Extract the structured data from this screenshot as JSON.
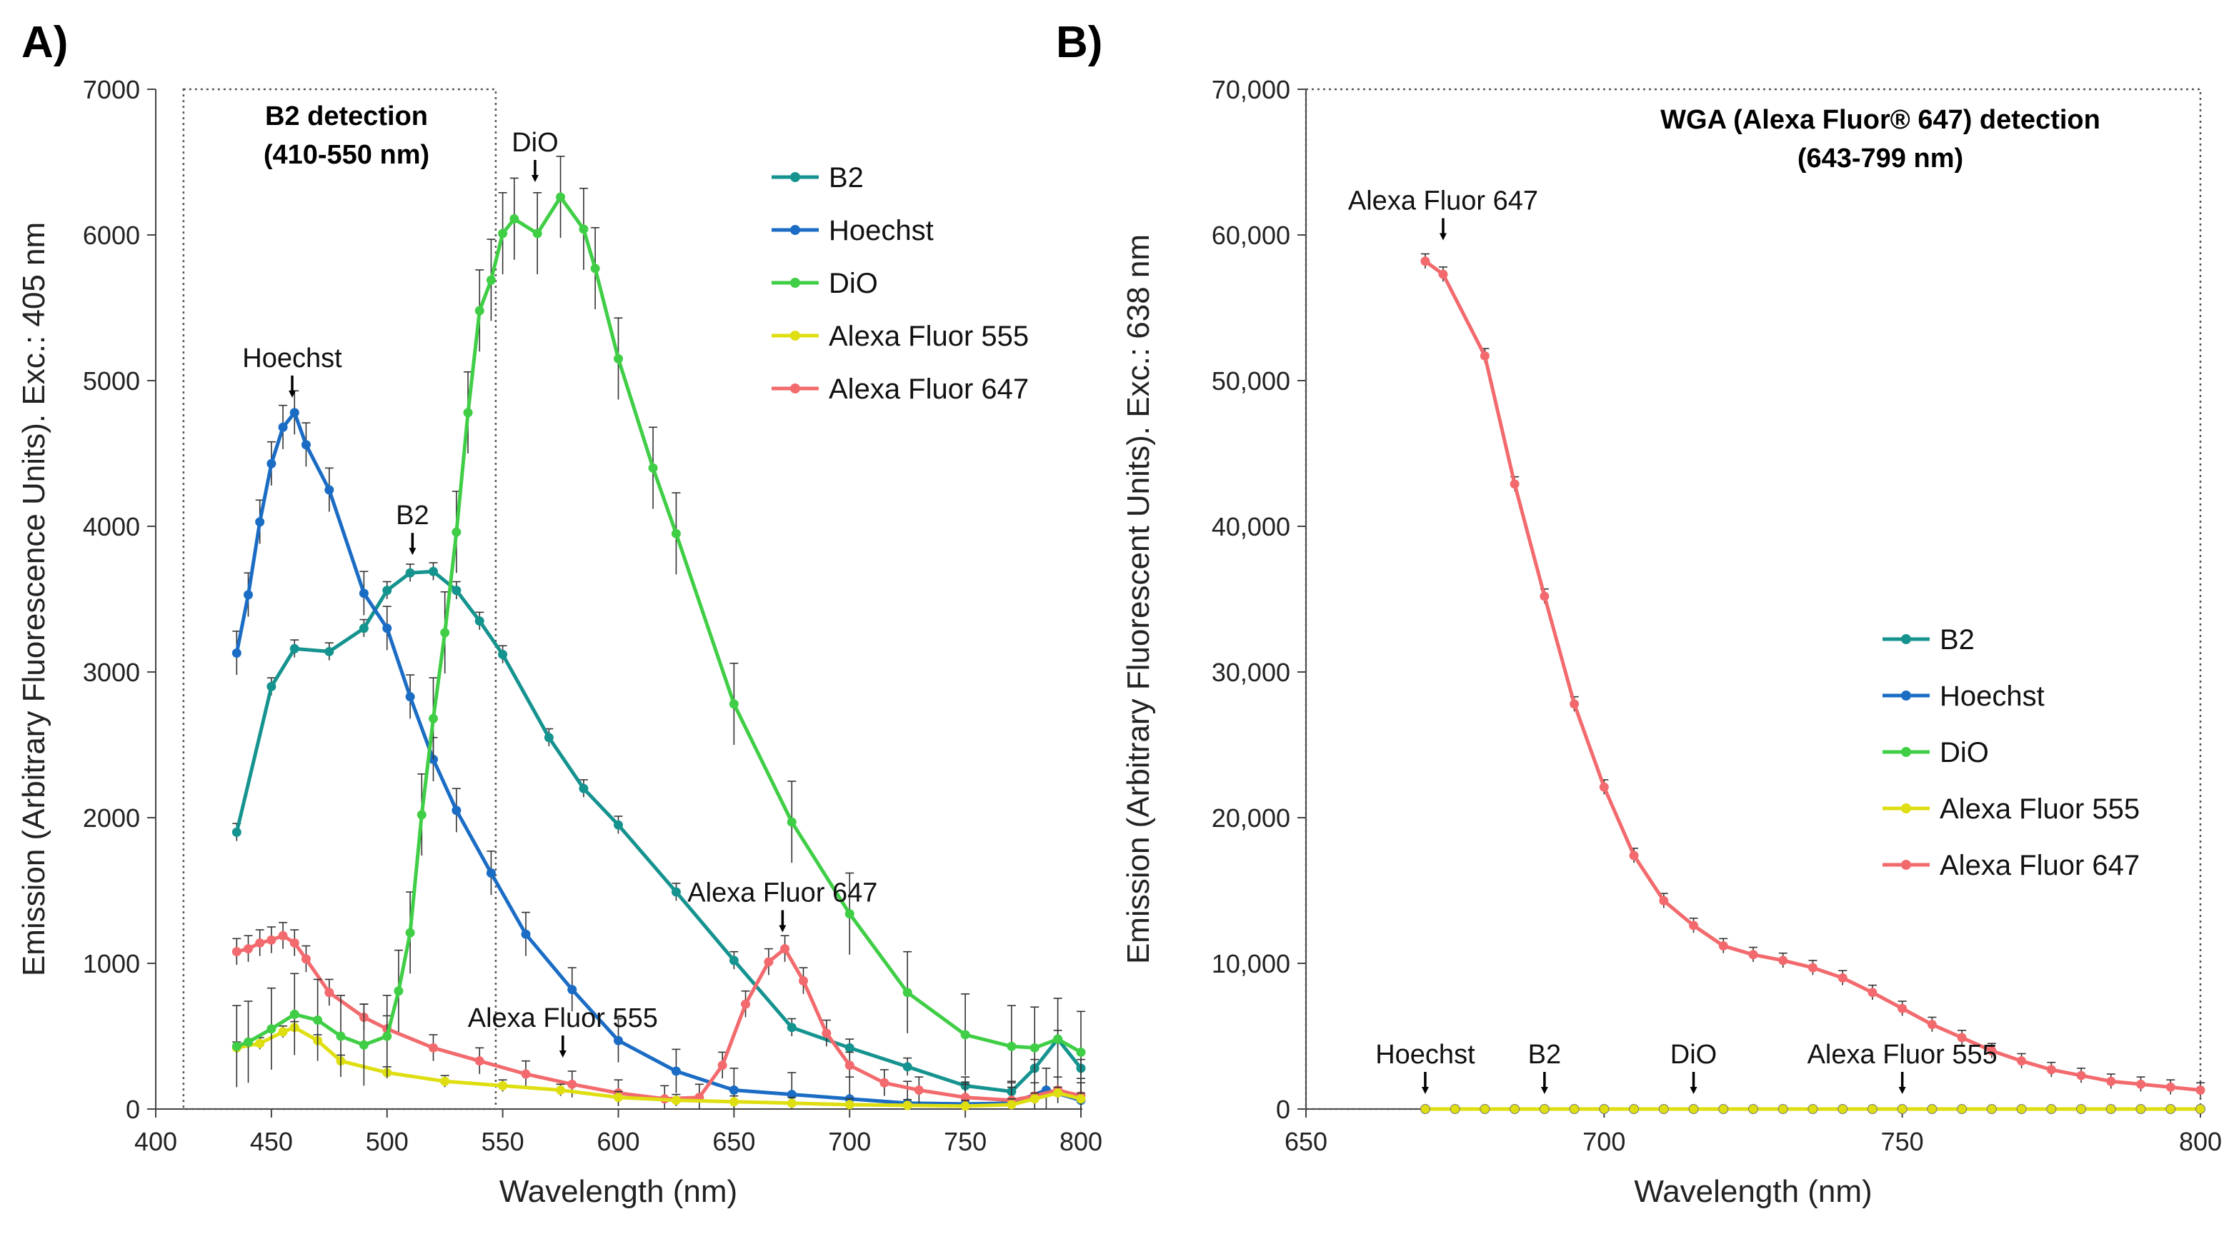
{
  "panels": {
    "a": "A)",
    "b": "B)"
  },
  "colors": {
    "B2": "#15938f",
    "Hoechst": "#1a6cc4",
    "DiO": "#3fce45",
    "Alexa Fluor 555": "#dede10",
    "Alexa Fluor 647": "#f26a6d"
  },
  "chart_data": [
    {
      "type": "line",
      "title": "",
      "xlabel": "Wavelength (nm)",
      "ylabel": "Emission (Arbitrary Fluorescence Units). Exc.: 405 nm",
      "xlim": [
        400,
        800
      ],
      "ylim": [
        0,
        7000
      ],
      "xticks": [
        "400",
        "450",
        "500",
        "550",
        "600",
        "650",
        "700",
        "750",
        "800"
      ],
      "yticks": [
        "0",
        "1000",
        "2000",
        "3000",
        "4000",
        "5000",
        "6000",
        "7000"
      ],
      "detection_box": {
        "range": [
          412,
          547
        ],
        "title": "B2 detection",
        "subtitle": "(410-550 nm)"
      },
      "legend": [
        "B2",
        "Hoechst",
        "DiO",
        "Alexa Fluor 555",
        "Alexa Fluor 647"
      ],
      "annotations": [
        {
          "text": "Hoechst",
          "x": 459,
          "y": 4780
        },
        {
          "text": "B2",
          "x": 511,
          "y": 3700
        },
        {
          "text": "DiO",
          "x": 564,
          "y": 6260
        },
        {
          "text": "Alexa Fluor 647",
          "x": 671,
          "y": 1110
        },
        {
          "text": "Alexa Fluor 555",
          "x": 576,
          "y": 250
        }
      ],
      "series": [
        {
          "name": "B2",
          "error": 60,
          "x": [
            435,
            450,
            460,
            475,
            490,
            500,
            510,
            520,
            530,
            540,
            550,
            570,
            585,
            600,
            625,
            650,
            675,
            700,
            725,
            750,
            770,
            780,
            790,
            800
          ],
          "y": [
            1900,
            2900,
            3160,
            3140,
            3300,
            3560,
            3680,
            3690,
            3560,
            3350,
            3120,
            2550,
            2200,
            1950,
            1490,
            1020,
            560,
            420,
            290,
            160,
            120,
            280,
            480,
            280
          ]
        },
        {
          "name": "Hoechst",
          "error": 150,
          "x": [
            435,
            440,
            445,
            450,
            455,
            460,
            465,
            475,
            490,
            500,
            510,
            520,
            530,
            545,
            560,
            580,
            600,
            625,
            650,
            675,
            700,
            725,
            750,
            770,
            785,
            800
          ],
          "y": [
            3130,
            3530,
            4030,
            4430,
            4680,
            4780,
            4560,
            4250,
            3540,
            3300,
            2830,
            2400,
            2050,
            1620,
            1200,
            820,
            470,
            260,
            130,
            100,
            70,
            40,
            35,
            40,
            130,
            60
          ]
        },
        {
          "name": "DiO",
          "error": 280,
          "x": [
            435,
            440,
            450,
            460,
            470,
            480,
            490,
            500,
            505,
            510,
            515,
            520,
            525,
            530,
            535,
            540,
            545,
            550,
            555,
            565,
            575,
            585,
            590,
            600,
            615,
            625,
            650,
            675,
            700,
            725,
            750,
            770,
            780,
            790,
            800
          ],
          "y": [
            430,
            460,
            550,
            650,
            610,
            500,
            440,
            500,
            810,
            1210,
            2020,
            2680,
            3270,
            3960,
            4780,
            5480,
            5690,
            6010,
            6110,
            6010,
            6260,
            6040,
            5770,
            5150,
            4400,
            3950,
            2780,
            1970,
            1340,
            800,
            510,
            430,
            420,
            480,
            390
          ]
        },
        {
          "name": "Alexa Fluor 555",
          "error": 40,
          "x": [
            435,
            445,
            455,
            460,
            470,
            480,
            500,
            525,
            550,
            575,
            600,
            625,
            650,
            675,
            700,
            725,
            750,
            770,
            780,
            790,
            800
          ],
          "y": [
            420,
            450,
            530,
            560,
            470,
            330,
            250,
            190,
            160,
            130,
            80,
            60,
            50,
            40,
            30,
            25,
            20,
            30,
            70,
            110,
            70
          ]
        },
        {
          "name": "Alexa Fluor 647",
          "error": 90,
          "x": [
            435,
            440,
            445,
            450,
            455,
            460,
            465,
            475,
            490,
            500,
            520,
            540,
            560,
            580,
            600,
            620,
            635,
            645,
            655,
            665,
            672,
            680,
            690,
            700,
            715,
            730,
            750,
            770,
            780,
            790,
            800
          ],
          "y": [
            1080,
            1100,
            1140,
            1160,
            1190,
            1140,
            1030,
            800,
            630,
            550,
            420,
            330,
            240,
            170,
            110,
            70,
            80,
            300,
            720,
            1010,
            1100,
            880,
            520,
            300,
            180,
            130,
            80,
            60,
            90,
            130,
            90
          ]
        }
      ]
    },
    {
      "type": "line",
      "title": "",
      "xlabel": "Wavelength (nm)",
      "ylabel": "Emission (Arbitrary Fluorescent Units). Exc.: 638 nm",
      "xlim": [
        650,
        800
      ],
      "ylim": [
        0,
        70000
      ],
      "xticks": [
        "650",
        "700",
        "750",
        "800"
      ],
      "yticks": [
        "0",
        "10,000",
        "20,000",
        "30,000",
        "40,000",
        "50,000",
        "60,000",
        "70,000"
      ],
      "detection_box": {
        "range": [
          650,
          800
        ],
        "title": "WGA (Alexa Fluor® 647) detection",
        "subtitle": "(643-799 nm)"
      },
      "legend": [
        "B2",
        "Hoechst",
        "DiO",
        "Alexa Fluor 555",
        "Alexa Fluor 647"
      ],
      "annotations": [
        {
          "text": "Alexa Fluor 647",
          "x": 673,
          "y": 58600
        },
        {
          "text": "Hoechst",
          "x": 670,
          "y": 0
        },
        {
          "text": "B2",
          "x": 690,
          "y": 0
        },
        {
          "text": "DiO",
          "x": 715,
          "y": 0
        },
        {
          "text": "Alexa Fluor 555",
          "x": 750,
          "y": 0
        }
      ],
      "series": [
        {
          "name": "B2",
          "x": [
            670,
            675,
            680,
            685,
            690,
            695,
            700,
            705,
            710,
            715,
            720,
            725,
            730,
            735,
            740,
            745,
            750,
            755,
            760,
            765,
            770,
            775,
            780,
            785,
            790,
            795,
            800
          ],
          "y": [
            0,
            0,
            0,
            0,
            0,
            0,
            0,
            0,
            0,
            0,
            0,
            0,
            0,
            0,
            0,
            0,
            0,
            0,
            0,
            0,
            0,
            0,
            0,
            0,
            0,
            0,
            0
          ]
        },
        {
          "name": "Hoechst",
          "x": [
            670,
            675,
            680,
            685,
            690,
            695,
            700,
            705,
            710,
            715,
            720,
            725,
            730,
            735,
            740,
            745,
            750,
            755,
            760,
            765,
            770,
            775,
            780,
            785,
            790,
            795,
            800
          ],
          "y": [
            0,
            0,
            0,
            0,
            0,
            0,
            0,
            0,
            0,
            0,
            0,
            0,
            0,
            0,
            0,
            0,
            0,
            0,
            0,
            0,
            0,
            0,
            0,
            0,
            0,
            0,
            0
          ]
        },
        {
          "name": "DiO",
          "x": [
            670,
            675,
            680,
            685,
            690,
            695,
            700,
            705,
            710,
            715,
            720,
            725,
            730,
            735,
            740,
            745,
            750,
            755,
            760,
            765,
            770,
            775,
            780,
            785,
            790,
            795,
            800
          ],
          "y": [
            0,
            0,
            0,
            0,
            0,
            0,
            0,
            0,
            0,
            0,
            0,
            0,
            0,
            0,
            0,
            0,
            0,
            0,
            0,
            0,
            0,
            0,
            0,
            0,
            0,
            0,
            0
          ]
        },
        {
          "name": "Alexa Fluor 555",
          "x": [
            670,
            675,
            680,
            685,
            690,
            695,
            700,
            705,
            710,
            715,
            720,
            725,
            730,
            735,
            740,
            745,
            750,
            755,
            760,
            765,
            770,
            775,
            780,
            785,
            790,
            795,
            800
          ],
          "y": [
            0,
            0,
            0,
            0,
            0,
            0,
            0,
            0,
            0,
            0,
            0,
            0,
            0,
            0,
            0,
            0,
            0,
            0,
            0,
            0,
            0,
            0,
            0,
            0,
            0,
            0,
            0
          ]
        },
        {
          "name": "Alexa Fluor 647",
          "error": 500,
          "x": [
            670,
            673,
            680,
            685,
            690,
            695,
            700,
            705,
            710,
            715,
            720,
            725,
            730,
            735,
            740,
            745,
            750,
            755,
            760,
            765,
            770,
            775,
            780,
            785,
            790,
            795,
            800
          ],
          "y": [
            58200,
            57300,
            51700,
            42900,
            35200,
            27800,
            22100,
            17400,
            14300,
            12600,
            11200,
            10600,
            10200,
            9700,
            9000,
            8000,
            6900,
            5800,
            4900,
            4000,
            3300,
            2700,
            2300,
            1900,
            1700,
            1500,
            1300
          ]
        }
      ]
    }
  ]
}
